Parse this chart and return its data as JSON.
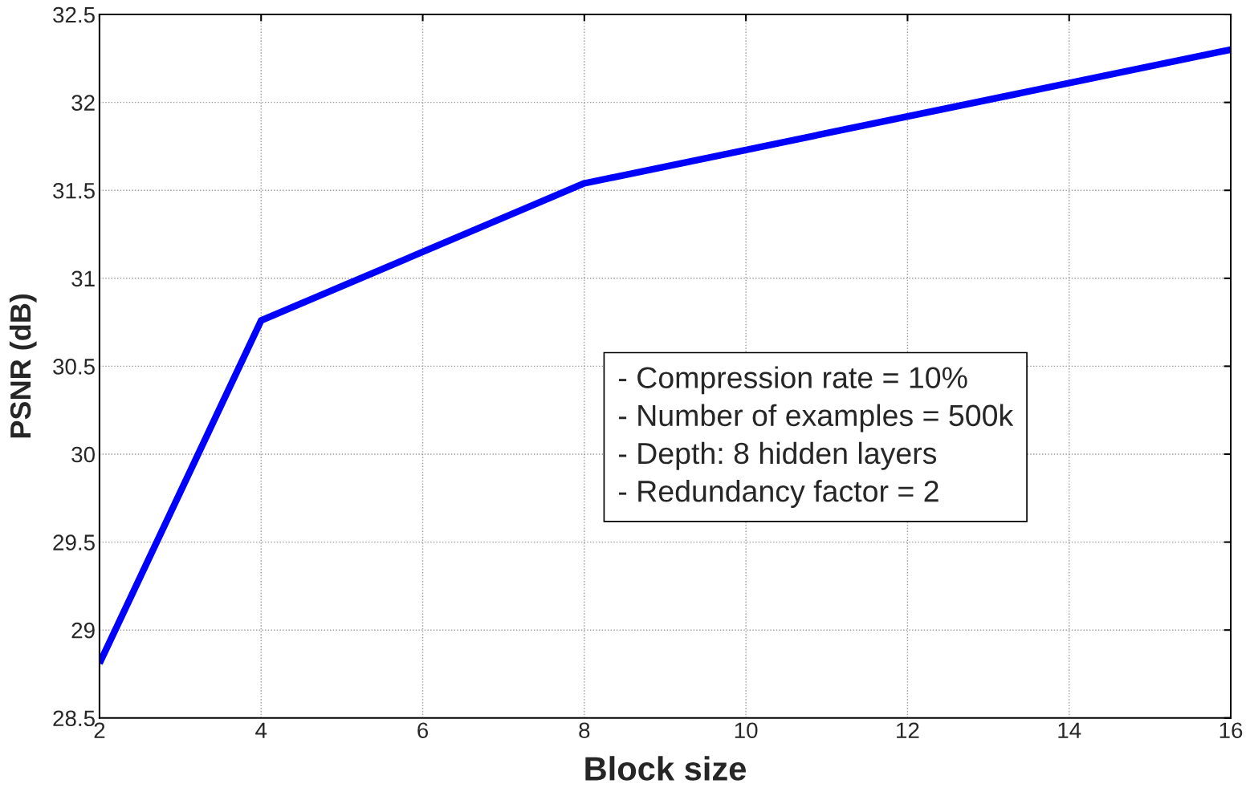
{
  "chart_data": {
    "type": "line",
    "xlabel": "Block size",
    "ylabel": "PSNR (dB)",
    "x": [
      2,
      4,
      8,
      16
    ],
    "series": [
      {
        "color": "#0000ff",
        "values": [
          28.81,
          30.76,
          31.54,
          32.3
        ]
      }
    ],
    "xlim": [
      2,
      16
    ],
    "xticks": [
      2,
      4,
      6,
      8,
      10,
      12,
      14,
      16
    ],
    "ylim": [
      28.5,
      32.5
    ],
    "yticks": [
      28.5,
      29,
      29.5,
      30,
      30.5,
      31,
      31.5,
      32,
      32.5
    ],
    "grid": true,
    "line_style": "solid",
    "marker": "none",
    "annotations": [
      "- Compression rate = 10%",
      "- Number of examples = 500k",
      "- Depth: 8 hidden layers",
      "- Redundancy factor = 2"
    ]
  }
}
